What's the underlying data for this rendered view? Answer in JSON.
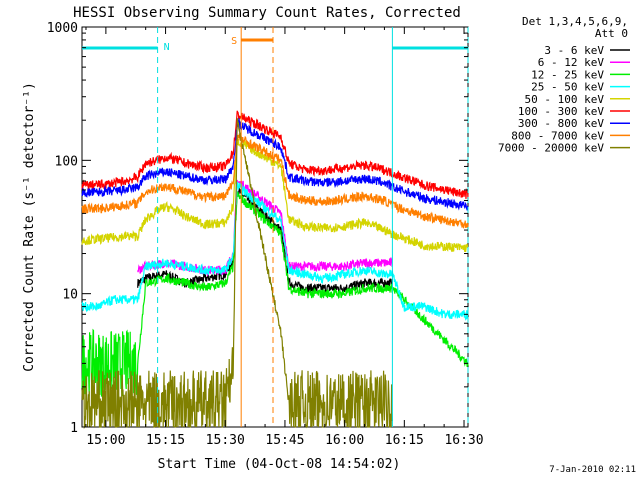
{
  "chart_data": {
    "type": "line",
    "title": "HESSI Observing Summary Count Rates, Corrected",
    "xlabel": "Start Time (04-Oct-08 14:54:02)",
    "ylabel": "Corrected Count Rate (s⁻¹ detector⁻¹)",
    "yscale": "log",
    "ylim": [
      1,
      1000
    ],
    "xlim": [
      "14:54",
      "16:31"
    ],
    "x_ticks": [
      "15:00",
      "15:15",
      "15:30",
      "15:45",
      "16:00",
      "16:15",
      "16:30"
    ],
    "y_ticks": [
      "1",
      "10",
      "100",
      "1000"
    ],
    "legend_header": [
      "Det 1,3,4,5,6,9,",
      "Att 0"
    ],
    "legend_position": "top-right, outside plot",
    "timestamp": "7-Jan-2010 02:11",
    "flags": [
      {
        "label": "N",
        "color": "#00e0e0",
        "intervals": [
          [
            "14:54",
            "15:13"
          ],
          [
            "16:12",
            "16:31"
          ]
        ]
      },
      {
        "label": "S",
        "color": "#ff7f00",
        "intervals": [
          [
            "15:34",
            "15:42"
          ]
        ]
      }
    ],
    "vertical_markers": [
      {
        "time": "15:13",
        "color": "#00e0e0",
        "style": "dashed"
      },
      {
        "time": "16:12",
        "color": "#00e0e0",
        "style": "solid"
      },
      {
        "time": "16:31",
        "color": "#00e0e0",
        "style": "dashed"
      },
      {
        "time": "15:34",
        "color": "#ff7f00",
        "style": "solid"
      },
      {
        "time": "15:42",
        "color": "#ff7f00",
        "style": "dashed"
      }
    ],
    "data_gaps": [
      [
        "14:54",
        "15:08"
      ],
      [
        "15:34",
        "15:43"
      ],
      [
        "16:12",
        "16:31"
      ]
    ],
    "series": [
      {
        "name": "3 - 6 keV",
        "color": "#000000",
        "x": [
          "15:08",
          "15:10",
          "15:15",
          "15:20",
          "15:25",
          "15:30",
          "15:32",
          "15:33",
          "15:44",
          "15:46",
          "15:50",
          "15:55",
          "16:00",
          "16:05",
          "16:10",
          "16:12"
        ],
        "values": [
          12,
          13,
          14,
          12,
          13,
          14,
          18,
          60,
          30,
          12,
          11,
          11,
          11,
          12,
          12,
          12
        ]
      },
      {
        "name": "6 - 12 keV",
        "color": "#ff00ff",
        "x": [
          "15:08",
          "15:10",
          "15:15",
          "15:20",
          "15:25",
          "15:30",
          "15:32",
          "15:33",
          "15:44",
          "15:46",
          "15:50",
          "15:55",
          "16:00",
          "16:05",
          "16:10",
          "16:12"
        ],
        "values": [
          15,
          16,
          17,
          16,
          15,
          15,
          20,
          70,
          40,
          16,
          16,
          16,
          16,
          17,
          17,
          17
        ]
      },
      {
        "name": "12 - 25 keV",
        "color": "#00ee00",
        "x": [
          "14:54",
          "15:08",
          "15:10",
          "15:15",
          "15:20",
          "15:25",
          "15:30",
          "15:32",
          "15:33",
          "15:44",
          "15:46",
          "15:50",
          "15:55",
          "16:00",
          "16:05",
          "16:10",
          "16:12",
          "16:31"
        ],
        "values": [
          3,
          3,
          12,
          13,
          12,
          11,
          12,
          16,
          55,
          28,
          11,
          10,
          10,
          10,
          11,
          11,
          11,
          3
        ]
      },
      {
        "name": "25 - 50 keV",
        "color": "#00ffff",
        "x": [
          "14:54",
          "14:58",
          "15:02",
          "15:06",
          "15:08",
          "15:10",
          "15:15",
          "15:20",
          "15:25",
          "15:30",
          "15:32",
          "15:33",
          "15:44",
          "15:46",
          "15:50",
          "15:55",
          "16:00",
          "16:05",
          "16:10",
          "16:12",
          "16:15",
          "16:20",
          "16:25",
          "16:31"
        ],
        "values": [
          8,
          8,
          9,
          9,
          9,
          16,
          17,
          16,
          15,
          15,
          19,
          65,
          35,
          15,
          14,
          13,
          14,
          15,
          14,
          14,
          8,
          8,
          7,
          7
        ]
      },
      {
        "name": "50 - 100 keV",
        "color": "#d4d400",
        "x": [
          "14:54",
          "15:00",
          "15:05",
          "15:08",
          "15:10",
          "15:13",
          "15:15",
          "15:17",
          "15:20",
          "15:25",
          "15:30",
          "15:32",
          "15:33",
          "15:44",
          "15:46",
          "15:50",
          "15:55",
          "16:00",
          "16:05",
          "16:10",
          "16:12",
          "16:20",
          "16:31"
        ],
        "values": [
          25,
          26,
          27,
          27,
          36,
          42,
          45,
          43,
          38,
          33,
          34,
          45,
          140,
          90,
          36,
          32,
          31,
          32,
          34,
          30,
          28,
          23,
          22
        ]
      },
      {
        "name": "100 - 300 keV",
        "color": "#ff0000",
        "x": [
          "14:54",
          "15:00",
          "15:05",
          "15:08",
          "15:10",
          "15:13",
          "15:15",
          "15:17",
          "15:20",
          "15:25",
          "15:30",
          "15:32",
          "15:33",
          "15:44",
          "15:46",
          "15:50",
          "15:55",
          "16:00",
          "16:05",
          "16:10",
          "16:12",
          "16:20",
          "16:31"
        ],
        "values": [
          65,
          66,
          70,
          75,
          95,
          100,
          105,
          102,
          95,
          88,
          90,
          115,
          220,
          150,
          95,
          85,
          84,
          88,
          92,
          85,
          80,
          65,
          55
        ]
      },
      {
        "name": "300 - 800 keV",
        "color": "#0000ff",
        "x": [
          "14:54",
          "15:00",
          "15:05",
          "15:08",
          "15:10",
          "15:13",
          "15:15",
          "15:17",
          "15:20",
          "15:25",
          "15:30",
          "15:32",
          "15:33",
          "15:44",
          "15:46",
          "15:50",
          "15:55",
          "16:00",
          "16:05",
          "16:10",
          "16:12",
          "16:20",
          "16:31"
        ],
        "values": [
          57,
          58,
          60,
          63,
          76,
          80,
          82,
          80,
          76,
          71,
          72,
          90,
          190,
          125,
          75,
          70,
          68,
          70,
          73,
          68,
          63,
          52,
          45
        ]
      },
      {
        "name": "800 - 7000 keV",
        "color": "#ff7f00",
        "x": [
          "14:54",
          "15:00",
          "15:05",
          "15:08",
          "15:10",
          "15:13",
          "15:15",
          "15:17",
          "15:20",
          "15:25",
          "15:30",
          "15:32",
          "15:33",
          "15:44",
          "15:46",
          "15:50",
          "15:55",
          "16:00",
          "16:05",
          "16:10",
          "16:12",
          "16:20",
          "16:31"
        ],
        "values": [
          43,
          44,
          46,
          48,
          58,
          62,
          64,
          62,
          58,
          53,
          54,
          68,
          150,
          100,
          55,
          50,
          49,
          51,
          54,
          50,
          46,
          38,
          33
        ]
      },
      {
        "name": "7000 - 20000 keV",
        "color": "#808000",
        "x": [
          "14:54",
          "15:30",
          "15:32",
          "15:33",
          "15:44",
          "15:46",
          "16:12"
        ],
        "values": [
          1.5,
          1.5,
          2.5,
          200,
          5,
          1.5,
          1.5
        ]
      }
    ]
  }
}
